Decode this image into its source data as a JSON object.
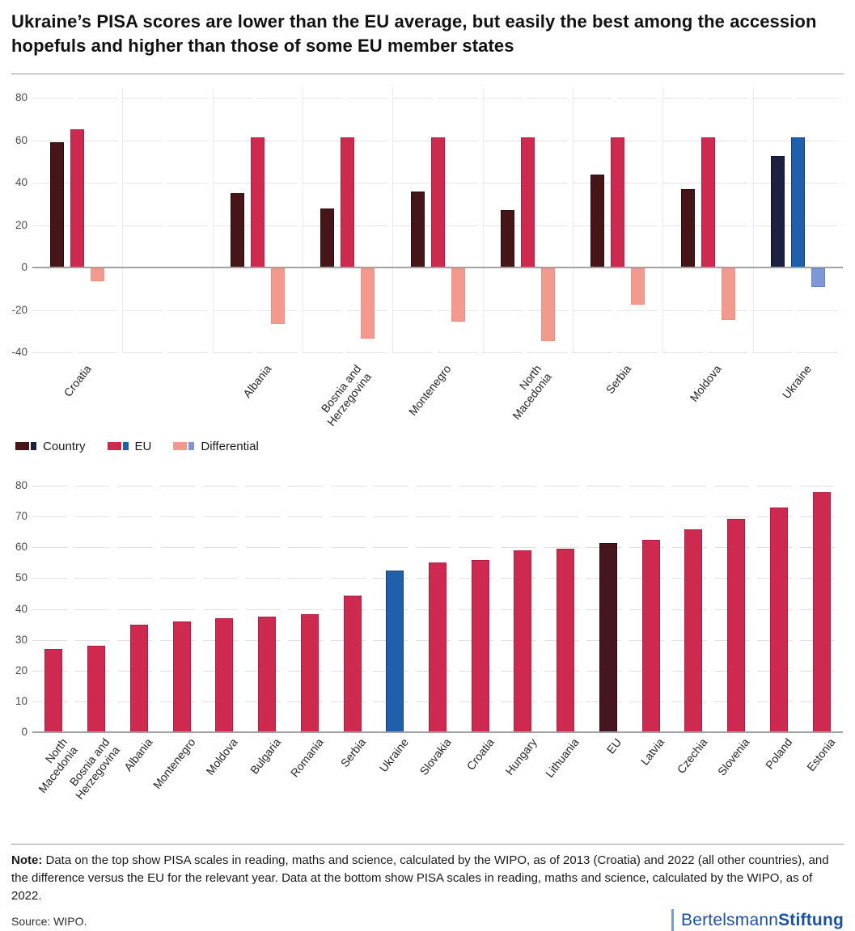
{
  "header": {
    "title": "Ukraine’s PISA scores are lower than the EU average, but easily the best among the accession hopefuls and higher than those of some EU member states"
  },
  "legend": {
    "items": [
      {
        "label": "Country",
        "main": "#451518",
        "accent": "#1c2142"
      },
      {
        "label": "EU",
        "main": "#ce2a50",
        "accent": "#1f5fac"
      },
      {
        "label": "Differential",
        "main": "#f29a8d",
        "accent": "#7e97d7"
      }
    ]
  },
  "colors": {
    "axis": "#a2a2a2",
    "grid": "#e4e4e4",
    "separator": "#ececec",
    "tick_text": "#4d4d4d",
    "label_text": "#262626",
    "logo_blue": "#1a519e",
    "logo_bar": "#7a9cd0"
  },
  "chart_data": [
    {
      "type": "bar",
      "id": "top",
      "grid": "dashed",
      "legend_position": "bottom-left",
      "ylim": [
        -44,
        85
      ],
      "yticks": [
        80,
        60,
        40,
        20,
        0,
        -20,
        -40
      ],
      "categories": [
        "Croatia",
        "",
        "Albania",
        "Bosnia and\nHerzegovina",
        "Montenegro",
        "North\nMacedonia",
        "Serbia",
        "Moldova",
        "Ukraine"
      ],
      "highlight_category": "Ukraine",
      "series": [
        {
          "name": "Country",
          "fill": "#451518",
          "border": "#2c0a0d",
          "highlight_fill": "#1c2142",
          "highlight_border": "#10142b",
          "values": [
            59,
            null,
            35,
            28,
            36,
            27,
            44,
            37,
            52.5
          ]
        },
        {
          "name": "EU",
          "fill": "#ce2a50",
          "border": "#b21b42",
          "highlight_fill": "#1f5fac",
          "highlight_border": "#143f7e",
          "values": [
            65,
            null,
            61.3,
            61.3,
            61.3,
            61.3,
            61.3,
            61.3,
            61.3
          ]
        },
        {
          "name": "Differential",
          "fill": "#f29a8d",
          "border": "#ee9184",
          "highlight_fill": "#7e97d7",
          "highlight_border": "#6a83c6",
          "values": [
            -6,
            null,
            -26.3,
            -33.3,
            -25.3,
            -34.3,
            -17,
            -24.3,
            -8.8
          ]
        }
      ]
    },
    {
      "type": "bar",
      "id": "bottom",
      "grid": "dashed",
      "ylim": [
        0,
        85
      ],
      "yticks": [
        0,
        10,
        20,
        30,
        40,
        50,
        60,
        70,
        80
      ],
      "categories": [
        "North\nMacedonia",
        "Bosnia and\nHerzegovina",
        "Albania",
        "Montenegro",
        "Moldova",
        "Bulgaria",
        "Romania",
        "Serbia",
        "Ukraine",
        "Slovakia",
        "Croatia",
        "Hungary",
        "Lithuania",
        "EU",
        "Latvia",
        "Czechia",
        "Slovenia",
        "Poland",
        "Estonia"
      ],
      "values": [
        27,
        28,
        35,
        36,
        37,
        37.5,
        38.3,
        44.3,
        52.5,
        55,
        56,
        59,
        59.5,
        61.3,
        62.5,
        65.8,
        69.2,
        72.9,
        78
      ],
      "bar_fill": "#ce2a50",
      "bar_border": "#b21b42",
      "overrides": {
        "Ukraine": {
          "fill": "#1f5fac",
          "border": "#143f7e"
        },
        "EU": {
          "fill": "#451520",
          "border": "#2c0a0d"
        }
      }
    }
  ],
  "note": {
    "label": "Note:",
    "text": " Data on the top show PISA scales in reading, maths and science, calculated by the WIPO, as of 2013 (Croatia) and 2022 (all other countries), and the difference versus the EU for the relevant year. Data at the bottom show PISA scales in reading, maths and science, calculated by the WIPO, as of 2022."
  },
  "footer": {
    "source": "Source: WIPO.",
    "logo_part1": "Bertelsmann",
    "logo_part2": "Stiftung"
  }
}
